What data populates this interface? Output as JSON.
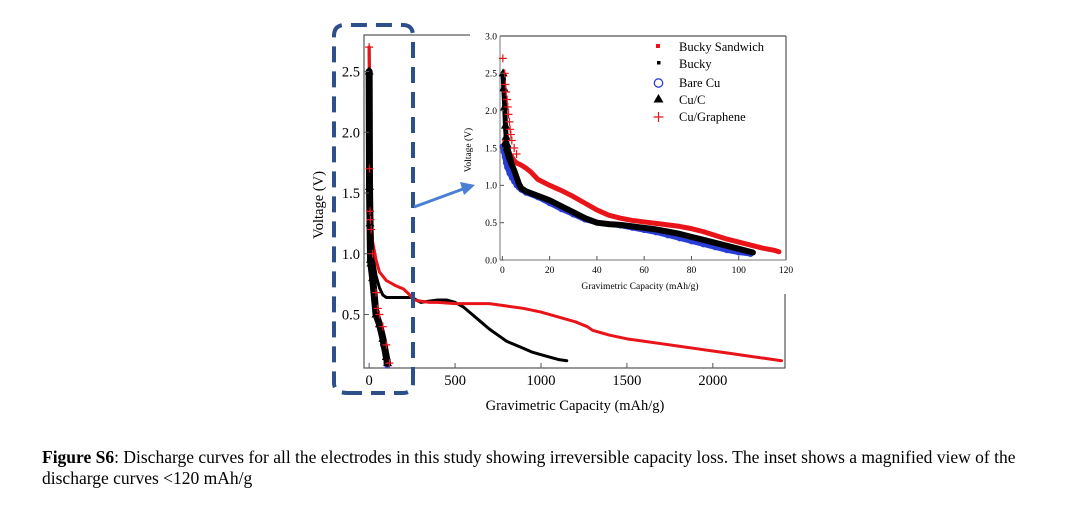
{
  "chart_data": [
    {
      "type": "scatter",
      "name": "main",
      "title": "",
      "xlabel": "Gravimetric Capacity (mAh/g)",
      "ylabel": "Voltage (V)",
      "xlim": [
        -30,
        2420
      ],
      "ylim": [
        0.06,
        2.8
      ],
      "xticks": [
        0,
        500,
        1000,
        1500,
        2000
      ],
      "yticks": [
        0.5,
        1.0,
        1.5,
        2.0,
        2.5
      ],
      "xtick_labels": [
        "0",
        "500",
        "1000",
        "1500",
        "2000"
      ],
      "ytick_labels": [
        "0.5",
        "1.0",
        "1.5",
        "2.0",
        "2.5"
      ],
      "grid": false,
      "series": [
        {
          "name": "Bucky Sandwich",
          "color": "#e8141a",
          "marker": "line",
          "x": [
            0,
            5,
            10,
            20,
            40,
            60,
            100,
            150,
            200,
            230,
            260,
            300,
            350,
            400,
            500,
            600,
            700,
            800,
            900,
            1000,
            1100,
            1200,
            1270,
            1300,
            1350,
            1400,
            1500,
            1600,
            1700,
            1800,
            1900,
            2000,
            2100,
            2200,
            2300,
            2400
          ],
          "y": [
            2.7,
            1.9,
            1.4,
            1.1,
            0.95,
            0.85,
            0.78,
            0.74,
            0.71,
            0.67,
            0.62,
            0.61,
            0.6,
            0.6,
            0.59,
            0.59,
            0.59,
            0.57,
            0.55,
            0.52,
            0.48,
            0.44,
            0.4,
            0.37,
            0.35,
            0.33,
            0.3,
            0.28,
            0.26,
            0.24,
            0.22,
            0.2,
            0.18,
            0.16,
            0.14,
            0.12
          ]
        },
        {
          "name": "Bucky",
          "color": "#000000",
          "marker": "line",
          "x": [
            0,
            5,
            10,
            20,
            40,
            60,
            80,
            100,
            150,
            200,
            250,
            300,
            350,
            400,
            450,
            500,
            550,
            600,
            650,
            700,
            750,
            800,
            850,
            900,
            950,
            1000,
            1050,
            1100,
            1150
          ],
          "y": [
            2.7,
            1.8,
            1.3,
            1.0,
            0.82,
            0.72,
            0.66,
            0.64,
            0.64,
            0.64,
            0.64,
            0.6,
            0.61,
            0.62,
            0.62,
            0.6,
            0.56,
            0.5,
            0.44,
            0.38,
            0.33,
            0.28,
            0.25,
            0.22,
            0.19,
            0.17,
            0.15,
            0.13,
            0.12
          ]
        },
        {
          "name": "Bare Cu",
          "color": "#2a3cd6",
          "marker": "circle",
          "x": [
            0,
            2,
            5,
            8,
            10,
            20,
            40,
            60,
            80,
            100,
            106
          ],
          "y": [
            1.55,
            1.3,
            1.1,
            0.95,
            0.9,
            0.78,
            0.5,
            0.4,
            0.25,
            0.1,
            0.08
          ]
        },
        {
          "name": "Cu/C",
          "color": "#000000",
          "marker": "triangle",
          "x": [
            0,
            2,
            5,
            8,
            10,
            20,
            40,
            60,
            80,
            100,
            107
          ],
          "y": [
            2.5,
            1.55,
            1.25,
            0.95,
            0.92,
            0.8,
            0.5,
            0.42,
            0.3,
            0.15,
            0.1
          ]
        },
        {
          "name": "Cu/Graphene",
          "color": "#e8141a",
          "marker": "plus",
          "x": [
            0,
            2,
            5,
            8,
            12,
            20,
            40,
            50,
            60,
            80,
            100,
            118
          ],
          "y": [
            2.7,
            1.7,
            1.35,
            1.28,
            1.2,
            1.0,
            0.68,
            0.55,
            0.5,
            0.4,
            0.25,
            0.1
          ]
        }
      ]
    },
    {
      "type": "scatter",
      "name": "inset",
      "title": "",
      "xlabel": "Gravimetric Capacity (mAh/g)",
      "ylabel": "Voltage (V)",
      "xlim": [
        -1,
        120
      ],
      "ylim": [
        0.0,
        3.0
      ],
      "xticks": [
        0,
        20,
        40,
        60,
        80,
        100,
        120
      ],
      "yticks": [
        0.0,
        0.5,
        1.0,
        1.5,
        2.0,
        2.5,
        3.0
      ],
      "xtick_labels": [
        "0",
        "20",
        "40",
        "60",
        "80",
        "100",
        "120"
      ],
      "ytick_labels": [
        "0.0",
        "0.5",
        "1.0",
        "1.5",
        "2.0",
        "2.5",
        "3.0"
      ],
      "grid": false,
      "legend": "top-right",
      "legend_entries": [
        "Bucky Sandwich",
        "Bucky",
        "Bare Cu",
        "Cu/C",
        "Cu/Graphene"
      ],
      "series": [
        {
          "name": "Bucky Sandwich",
          "color": "#e8141a",
          "marker": "square",
          "x": [
            1,
            2,
            3,
            4,
            5,
            6,
            8,
            10,
            12,
            15,
            20,
            25,
            30,
            35,
            40,
            45,
            50,
            55,
            60,
            65,
            70,
            75,
            80,
            85,
            90,
            95,
            100,
            105,
            110,
            115,
            117
          ],
          "y": [
            1.6,
            1.5,
            1.42,
            1.38,
            1.33,
            1.3,
            1.27,
            1.23,
            1.18,
            1.08,
            1.0,
            0.93,
            0.85,
            0.76,
            0.67,
            0.6,
            0.56,
            0.53,
            0.51,
            0.49,
            0.47,
            0.45,
            0.42,
            0.38,
            0.33,
            0.28,
            0.24,
            0.2,
            0.16,
            0.13,
            0.11
          ]
        },
        {
          "name": "Bucky",
          "color": "#000000",
          "marker": "square",
          "x": [
            1,
            2,
            3,
            5,
            7,
            8,
            10,
            15,
            20,
            25,
            30,
            35,
            40,
            45,
            50,
            55,
            60,
            65,
            70,
            75,
            80,
            85,
            90,
            95,
            100,
            106
          ],
          "y": [
            1.55,
            1.45,
            1.35,
            1.2,
            1.02,
            0.96,
            0.92,
            0.86,
            0.8,
            0.72,
            0.64,
            0.56,
            0.5,
            0.48,
            0.47,
            0.45,
            0.43,
            0.41,
            0.38,
            0.35,
            0.31,
            0.27,
            0.23,
            0.19,
            0.15,
            0.1
          ]
        },
        {
          "name": "Bare Cu",
          "color": "#2a3cd6",
          "marker": "circle",
          "x": [
            0,
            0.5,
            1,
            1.5,
            2,
            3,
            4,
            5,
            6,
            7,
            8,
            10,
            15,
            20,
            25,
            30,
            35,
            40,
            45,
            50,
            55,
            60,
            65,
            70,
            75,
            80,
            85,
            90,
            95,
            100,
            105
          ],
          "y": [
            1.52,
            1.45,
            1.38,
            1.3,
            1.24,
            1.16,
            1.1,
            1.05,
            1.0,
            0.97,
            0.94,
            0.9,
            0.84,
            0.76,
            0.68,
            0.61,
            0.54,
            0.5,
            0.48,
            0.46,
            0.43,
            0.4,
            0.37,
            0.33,
            0.29,
            0.25,
            0.21,
            0.17,
            0.13,
            0.1,
            0.08
          ]
        },
        {
          "name": "Cu/C",
          "color": "#000000",
          "marker": "triangle",
          "x": [
            0.3,
            0.6,
            1,
            1.3,
            1.6,
            2,
            3,
            4,
            5,
            6,
            7,
            8,
            10,
            15,
            20,
            25,
            30,
            35,
            40,
            45,
            50,
            55,
            60,
            65,
            70,
            75,
            80,
            85,
            90,
            95,
            100,
            106
          ],
          "y": [
            2.5,
            2.3,
            2.05,
            1.8,
            1.65,
            1.55,
            1.42,
            1.3,
            1.2,
            1.1,
            1.02,
            0.96,
            0.92,
            0.86,
            0.8,
            0.72,
            0.64,
            0.56,
            0.5,
            0.48,
            0.47,
            0.45,
            0.43,
            0.41,
            0.38,
            0.35,
            0.31,
            0.27,
            0.23,
            0.19,
            0.15,
            0.1
          ]
        },
        {
          "name": "Cu/Graphene",
          "color": "#e8141a",
          "marker": "plus",
          "x": [
            0.2,
            1,
            1.3,
            1.6,
            2,
            2.3,
            2.6,
            3,
            3.3,
            3.6,
            4,
            5,
            6
          ],
          "y": [
            2.7,
            2.5,
            2.35,
            2.25,
            2.15,
            2.05,
            1.95,
            1.85,
            1.75,
            1.68,
            1.6,
            1.5,
            1.42
          ]
        }
      ]
    }
  ],
  "main": {
    "xlabel": "Gravimetric Capacity (mAh/g)",
    "ylabel": "Voltage (V)",
    "xtick_labels": [
      "0",
      "500",
      "1000",
      "1500",
      "2000"
    ],
    "ytick_labels": [
      "0.5",
      "1.0",
      "1.5",
      "2.0",
      "2.5"
    ]
  },
  "inset": {
    "xlabel": "Gravimetric Capacity (mAh/g)",
    "ylabel": "Voltage (V)",
    "xtick_labels": [
      "0",
      "20",
      "40",
      "60",
      "80",
      "100",
      "120"
    ],
    "ytick_labels": [
      "0.0",
      "0.5",
      "1.0",
      "1.5",
      "2.0",
      "2.5",
      "3.0"
    ],
    "legend": [
      "Bucky Sandwich",
      "Bucky",
      "Bare Cu",
      "Cu/C",
      "Cu/Graphene"
    ]
  },
  "highlight": {
    "box_color": "#2d4f8a",
    "arrow_color": "#4a7fd4"
  },
  "caption": {
    "label": "Figure S6",
    "text": ": Discharge curves for all the electrodes in this study showing irreversible capacity loss. The inset shows a magnified view of the discharge curves <120 mAh/g"
  }
}
